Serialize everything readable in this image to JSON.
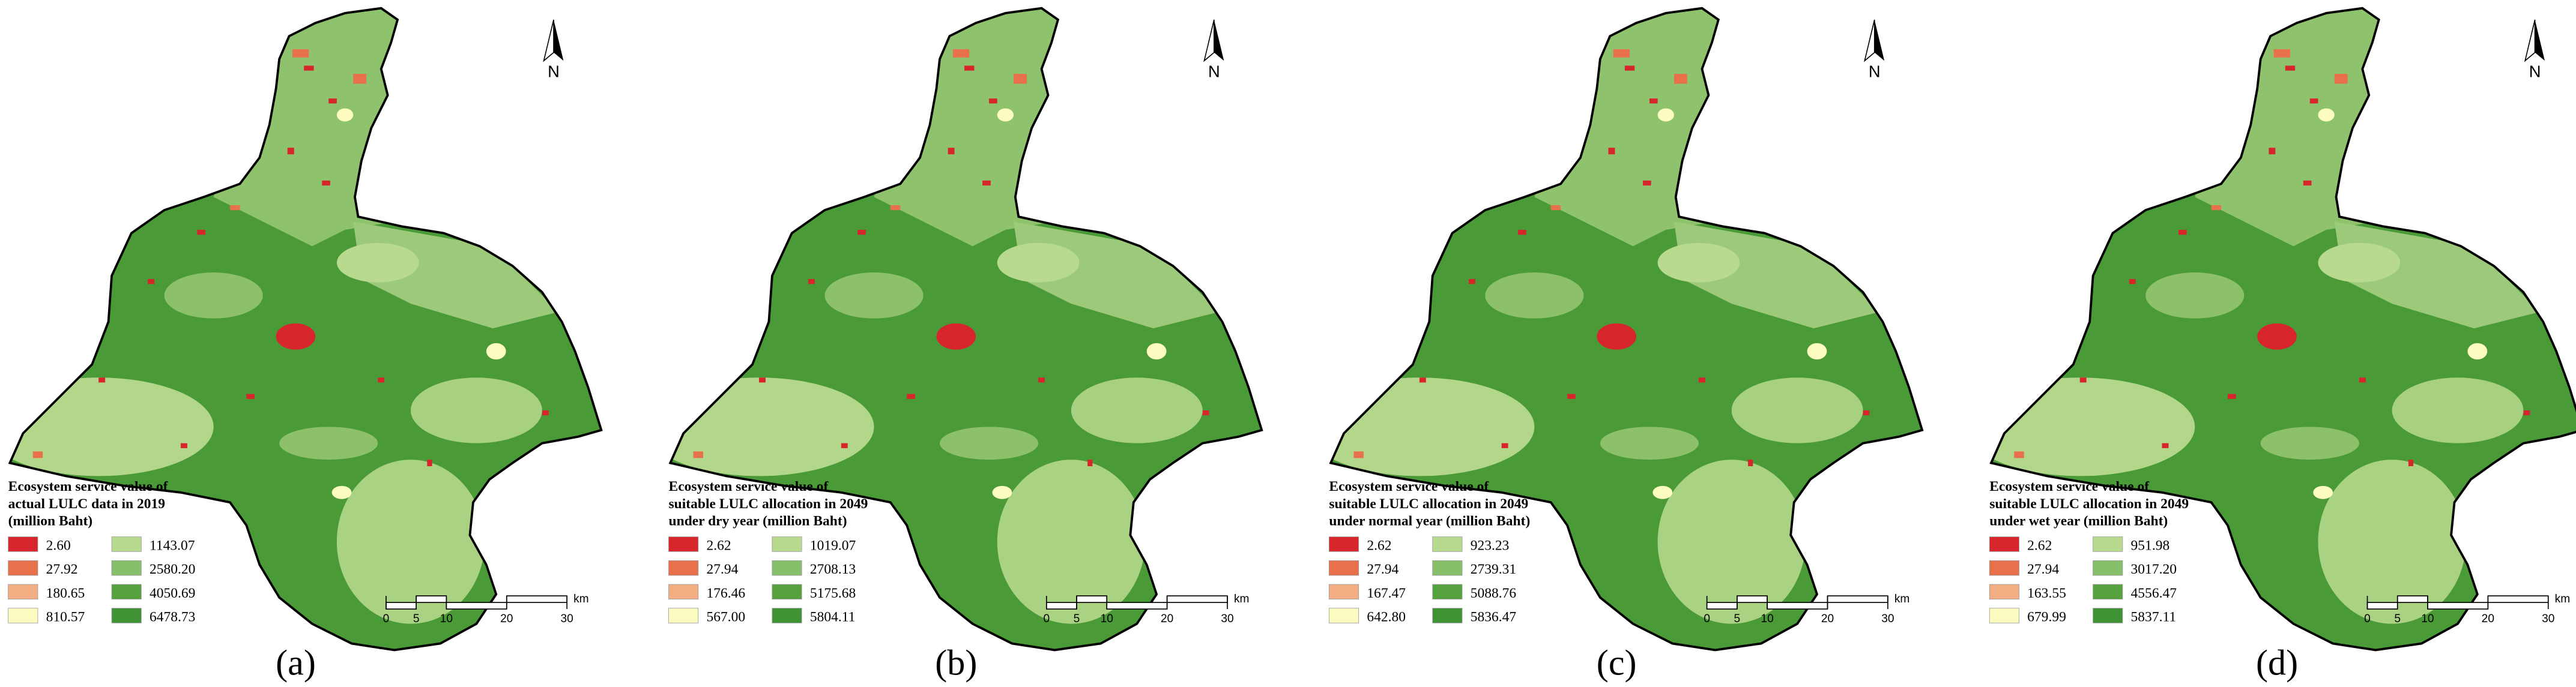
{
  "north_label": "N",
  "scale_bar": {
    "ticks": [
      0,
      5,
      10,
      20,
      30
    ],
    "unit": "km"
  },
  "panels": [
    {
      "label": "(a)",
      "legend_title": [
        "Ecosystem service value of",
        "actual LULC data in 2019",
        "(million Baht)"
      ],
      "legend": [
        {
          "value": "2.60",
          "color": "#d7262b"
        },
        {
          "value": "27.92",
          "color": "#e8704b"
        },
        {
          "value": "180.65",
          "color": "#f2ad83"
        },
        {
          "value": "810.57",
          "color": "#fdfcc0"
        },
        {
          "value": "1143.07",
          "color": "#b7da8e"
        },
        {
          "value": "2580.20",
          "color": "#86c06a"
        },
        {
          "value": "4050.69",
          "color": "#55a23f"
        },
        {
          "value": "6478.73",
          "color": "#3f9334"
        }
      ]
    },
    {
      "label": "(b)",
      "legend_title": [
        "Ecosystem service value of",
        "suitable LULC allocation in 2049",
        "under dry year (million Baht)"
      ],
      "legend": [
        {
          "value": "2.62",
          "color": "#d7262b"
        },
        {
          "value": "27.94",
          "color": "#e8704b"
        },
        {
          "value": "176.46",
          "color": "#f2ad83"
        },
        {
          "value": "567.00",
          "color": "#fdfcc0"
        },
        {
          "value": "1019.07",
          "color": "#b7da8e"
        },
        {
          "value": "2708.13",
          "color": "#86c06a"
        },
        {
          "value": "5175.68",
          "color": "#55a23f"
        },
        {
          "value": "5804.11",
          "color": "#3f9334"
        }
      ]
    },
    {
      "label": "(c)",
      "legend_title": [
        "Ecosystem service value of",
        "suitable LULC allocation in 2049",
        "under normal year (million Baht)"
      ],
      "legend": [
        {
          "value": "2.62",
          "color": "#d7262b"
        },
        {
          "value": "27.94",
          "color": "#e8704b"
        },
        {
          "value": "167.47",
          "color": "#f2ad83"
        },
        {
          "value": "642.80",
          "color": "#fdfcc0"
        },
        {
          "value": "923.23",
          "color": "#b7da8e"
        },
        {
          "value": "2739.31",
          "color": "#86c06a"
        },
        {
          "value": "5088.76",
          "color": "#55a23f"
        },
        {
          "value": "5836.47",
          "color": "#3f9334"
        }
      ]
    },
    {
      "label": "(d)",
      "legend_title": [
        "Ecosystem service value of",
        "suitable LULC allocation in 2049",
        "under wet year (million Baht)"
      ],
      "legend": [
        {
          "value": "2.62",
          "color": "#d7262b"
        },
        {
          "value": "27.94",
          "color": "#e8704b"
        },
        {
          "value": "163.55",
          "color": "#f2ad83"
        },
        {
          "value": "679.99",
          "color": "#fdfcc0"
        },
        {
          "value": "951.98",
          "color": "#b7da8e"
        },
        {
          "value": "3017.20",
          "color": "#86c06a"
        },
        {
          "value": "4556.47",
          "color": "#55a23f"
        },
        {
          "value": "5837.11",
          "color": "#3f9334"
        }
      ]
    }
  ]
}
